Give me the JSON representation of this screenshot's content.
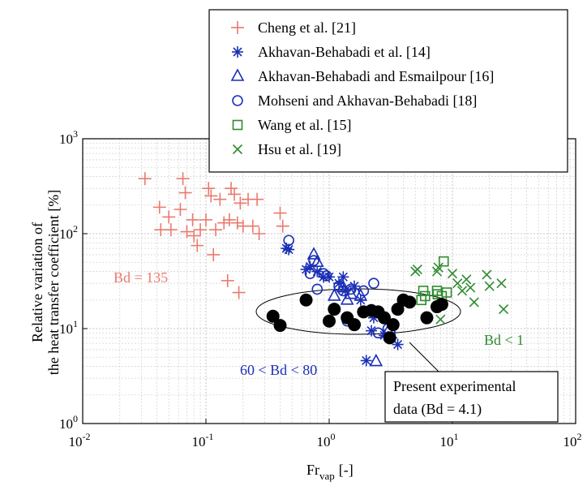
{
  "chart_data": {
    "type": "scatter",
    "xscale": "log",
    "yscale": "log",
    "xlim": [
      0.01,
      100
    ],
    "ylim": [
      1,
      1000
    ],
    "grid": true,
    "legend_placement": "top-right",
    "xlabel_main": "Fr",
    "xlabel_sub": "vap",
    "xlabel_unit": "[-]",
    "ylabel_line1": "Relative variation of",
    "ylabel_line2": "the heat transfer coefficient [%]",
    "x_ticks": [
      {
        "value": 0.01,
        "base": "10",
        "exp": "-2"
      },
      {
        "value": 0.1,
        "base": "10",
        "exp": "-1"
      },
      {
        "value": 1,
        "base": "10",
        "exp": "0"
      },
      {
        "value": 10,
        "base": "10",
        "exp": "1"
      },
      {
        "value": 100,
        "base": "10",
        "exp": "2"
      }
    ],
    "y_ticks": [
      {
        "value": 1,
        "base": "10",
        "exp": "0"
      },
      {
        "value": 10,
        "base": "10",
        "exp": "1"
      },
      {
        "value": 100,
        "base": "10",
        "exp": "2"
      },
      {
        "value": 1000,
        "base": "10",
        "exp": "3"
      }
    ],
    "series": [
      {
        "name": "Cheng et al. [21]",
        "marker": "plus",
        "color": "#e87a6e",
        "points": [
          [
            0.032,
            380
          ],
          [
            0.042,
            190
          ],
          [
            0.043,
            110
          ],
          [
            0.05,
            150
          ],
          [
            0.052,
            110
          ],
          [
            0.062,
            180
          ],
          [
            0.065,
            380
          ],
          [
            0.068,
            270
          ],
          [
            0.07,
            105
          ],
          [
            0.078,
            140
          ],
          [
            0.08,
            95
          ],
          [
            0.085,
            75
          ],
          [
            0.09,
            110
          ],
          [
            0.1,
            140
          ],
          [
            0.105,
            300
          ],
          [
            0.11,
            250
          ],
          [
            0.115,
            60
          ],
          [
            0.12,
            110
          ],
          [
            0.13,
            230
          ],
          [
            0.14,
            130
          ],
          [
            0.15,
            32
          ],
          [
            0.155,
            140
          ],
          [
            0.16,
            300
          ],
          [
            0.17,
            260
          ],
          [
            0.18,
            130
          ],
          [
            0.185,
            24
          ],
          [
            0.19,
            210
          ],
          [
            0.2,
            120
          ],
          [
            0.22,
            230
          ],
          [
            0.24,
            120
          ],
          [
            0.26,
            230
          ],
          [
            0.27,
            100
          ],
          [
            0.4,
            165
          ],
          [
            0.42,
            120
          ]
        ]
      },
      {
        "name": "Akhavan-Behabadi et al. [14]",
        "marker": "asterisk",
        "color": "#1a2fb5",
        "points": [
          [
            0.45,
            70
          ],
          [
            0.47,
            68
          ],
          [
            0.65,
            42
          ],
          [
            0.7,
            45
          ],
          [
            0.8,
            40
          ],
          [
            0.9,
            35
          ],
          [
            1.0,
            35
          ],
          [
            1.2,
            30
          ],
          [
            1.3,
            35
          ],
          [
            1.35,
            25
          ],
          [
            1.6,
            28
          ],
          [
            1.8,
            20
          ],
          [
            2.0,
            4.6
          ],
          [
            2.2,
            9.5
          ],
          [
            2.3,
            13
          ],
          [
            2.8,
            8.5
          ],
          [
            3.2,
            8
          ],
          [
            3.6,
            6.8
          ]
        ]
      },
      {
        "name": "Akhavan-Behabadi and Esmailpour [16]",
        "marker": "triangle",
        "color": "#1a2fb5",
        "points": [
          [
            0.75,
            60
          ],
          [
            0.8,
            50
          ],
          [
            1.1,
            22
          ],
          [
            1.3,
            27
          ],
          [
            1.4,
            20
          ],
          [
            1.5,
            23
          ],
          [
            1.8,
            22
          ],
          [
            2.4,
            4.5
          ],
          [
            3.1,
            10
          ]
        ]
      },
      {
        "name": "Mohseni and Akhavan-Behabadi [18]",
        "marker": "circle",
        "color": "#1a2fb5",
        "points": [
          [
            0.47,
            85
          ],
          [
            0.7,
            38
          ],
          [
            0.75,
            52
          ],
          [
            0.9,
            38
          ],
          [
            0.95,
            36
          ],
          [
            0.8,
            26
          ],
          [
            1.2,
            28
          ],
          [
            1.3,
            25
          ],
          [
            1.5,
            26
          ],
          [
            1.9,
            25
          ],
          [
            2.3,
            30
          ],
          [
            1.4,
            12
          ],
          [
            2.5,
            9
          ],
          [
            3.0,
            10
          ]
        ]
      },
      {
        "name": "Wang et al. [15]",
        "marker": "square",
        "color": "#2e8b2e",
        "points": [
          [
            5.6,
            20
          ],
          [
            5.8,
            25
          ],
          [
            6.0,
            22
          ],
          [
            7.5,
            25
          ],
          [
            7.6,
            23
          ],
          [
            8.2,
            22
          ],
          [
            8.5,
            51
          ],
          [
            9.0,
            24
          ]
        ]
      },
      {
        "name": "Hsu et al. [19]",
        "marker": "cross",
        "color": "#2e8b2e",
        "points": [
          [
            5.0,
            40
          ],
          [
            5.2,
            42
          ],
          [
            7.5,
            40
          ],
          [
            7.7,
            44
          ],
          [
            8.0,
            12.5
          ],
          [
            10.0,
            38
          ],
          [
            11.0,
            30
          ],
          [
            12.0,
            25
          ],
          [
            13.0,
            33
          ],
          [
            14.0,
            27
          ],
          [
            15.0,
            19
          ],
          [
            19.0,
            37
          ],
          [
            20.0,
            28
          ],
          [
            25.0,
            30
          ],
          [
            26.0,
            16
          ]
        ]
      },
      {
        "name": "",
        "marker": "filled-circle",
        "color": "#000000",
        "points": [
          [
            0.35,
            13.5
          ],
          [
            0.4,
            10.8
          ],
          [
            0.65,
            20
          ],
          [
            1.0,
            12
          ],
          [
            1.1,
            16
          ],
          [
            1.4,
            13
          ],
          [
            1.6,
            11
          ],
          [
            1.9,
            15
          ],
          [
            2.2,
            15.5
          ],
          [
            2.5,
            15
          ],
          [
            2.8,
            13
          ],
          [
            3.1,
            8
          ],
          [
            3.3,
            11
          ],
          [
            3.6,
            16
          ],
          [
            4.0,
            20
          ],
          [
            4.5,
            19
          ],
          [
            6.2,
            13
          ],
          [
            7.5,
            17
          ],
          [
            8.2,
            18
          ]
        ]
      }
    ],
    "annotations": [
      {
        "text": "Bd = 135",
        "color": "#e87a6e"
      },
      {
        "text": "60 < Bd < 80",
        "color": "#1a2fb5"
      },
      {
        "text": "Bd < 1",
        "color": "#2e8b2e"
      }
    ],
    "callout_line1": "Present experimental",
    "callout_line2": "data (Bd = 4.1)"
  }
}
